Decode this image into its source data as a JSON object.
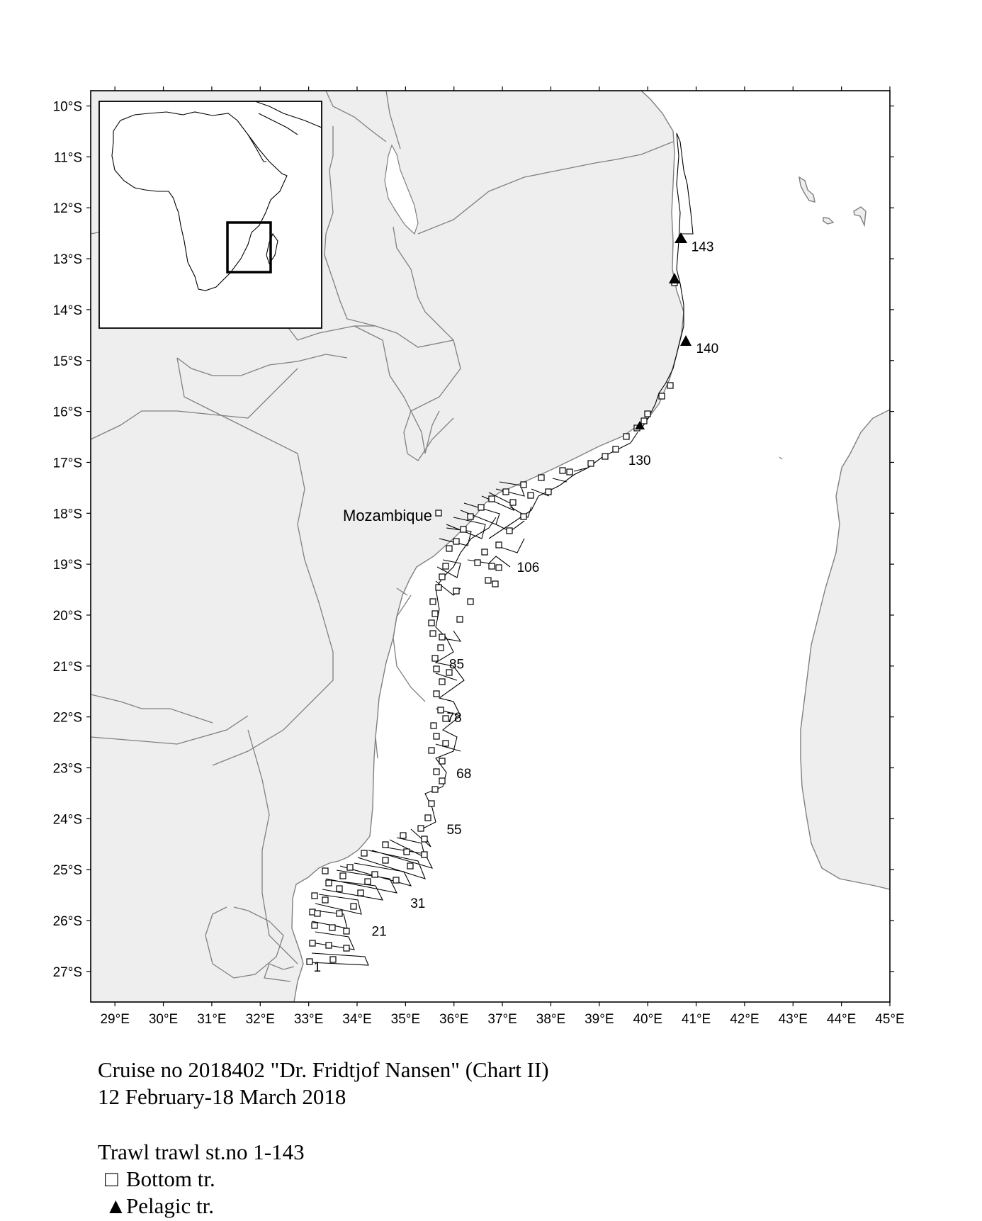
{
  "map": {
    "lon_ticks": [
      "29°E",
      "30°E",
      "31°E",
      "32°E",
      "33°E",
      "34°E",
      "35°E",
      "36°E",
      "37°E",
      "38°E",
      "39°E",
      "40°E",
      "41°E",
      "42°E",
      "43°E",
      "44°E",
      "45°E"
    ],
    "lat_ticks": [
      "10°S",
      "11°S",
      "12°S",
      "13°S",
      "14°S",
      "15°S",
      "16°S",
      "17°S",
      "18°S",
      "19°S",
      "20°S",
      "21°S",
      "22°S",
      "23°S",
      "24°S",
      "25°S",
      "26°S",
      "27°S"
    ],
    "lon_range": [
      28.5,
      45.0
    ],
    "lat_range": [
      -27.6,
      -9.7
    ],
    "country_label": "Mozambique",
    "land_color": "#eeeeee",
    "sea_color": "#ffffff",
    "border_color": "#808080",
    "station_labels": [
      {
        "text": "1",
        "lon": 33.1,
        "lat": -27.0
      },
      {
        "text": "21",
        "lon": 34.3,
        "lat": -26.3
      },
      {
        "text": "31",
        "lon": 35.1,
        "lat": -25.75
      },
      {
        "text": "55",
        "lon": 35.85,
        "lat": -24.3
      },
      {
        "text": "68",
        "lon": 36.05,
        "lat": -23.2
      },
      {
        "text": "78",
        "lon": 35.85,
        "lat": -22.1
      },
      {
        "text": "85",
        "lon": 35.9,
        "lat": -21.05
      },
      {
        "text": "106",
        "lon": 37.3,
        "lat": -19.15
      },
      {
        "text": "130",
        "lon": 39.6,
        "lat": -17.05
      },
      {
        "text": "143",
        "lon": 40.9,
        "lat": -12.85
      },
      {
        "text": "140",
        "lon": 41.0,
        "lat": -14.85
      }
    ],
    "inset": {
      "box_region": "Mozambique coast"
    }
  },
  "caption": {
    "line1": "Cruise no 2018402  \"Dr. Fridtjof Nansen\" (Chart II)",
    "line2": "12 February-18 March  2018"
  },
  "legend": {
    "title": "Trawl trawl st.no 1-143",
    "items": [
      {
        "symbol": "□",
        "label": "Bottom tr."
      },
      {
        "symbol": "▲",
        "label": "Pelagic tr."
      }
    ]
  }
}
